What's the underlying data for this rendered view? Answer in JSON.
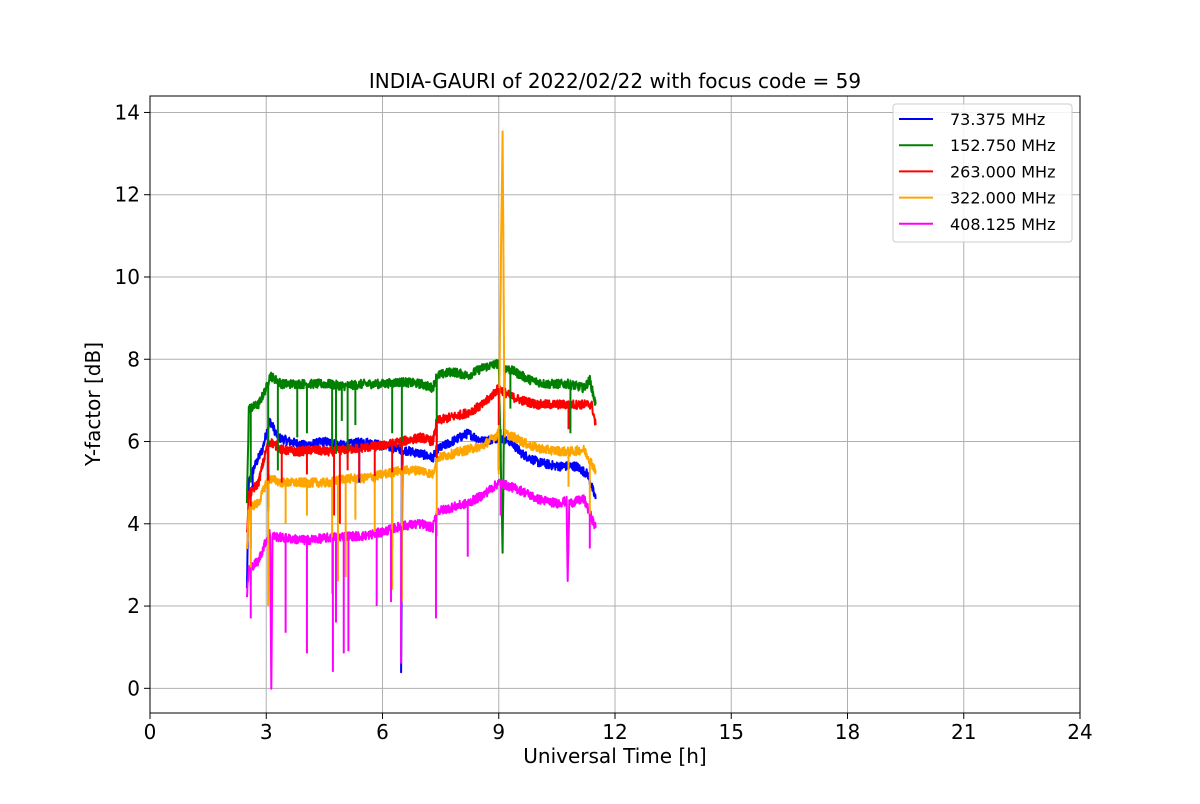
{
  "chart_data": {
    "type": "line",
    "title": "INDIA-GAURI of 2022/02/22 with focus code = 59",
    "xlabel": "Universal Time [h]",
    "ylabel": "Y-factor [dB]",
    "xlim": [
      0,
      24
    ],
    "ylim": [
      -0.6,
      14.4
    ],
    "xticks": [
      0,
      3,
      6,
      9,
      12,
      15,
      18,
      21,
      24
    ],
    "yticks": [
      0,
      2,
      4,
      6,
      8,
      10,
      12,
      14
    ],
    "grid": true,
    "legend_position": "top-right",
    "series": [
      {
        "name": " 73.375 MHz",
        "color": "#0000ff",
        "points": [
          [
            2.5,
            2.4
          ],
          [
            2.55,
            5.0
          ],
          [
            2.7,
            5.4
          ],
          [
            2.9,
            5.8
          ],
          [
            3.0,
            6.2
          ],
          [
            3.1,
            6.5
          ],
          [
            3.3,
            6.1
          ],
          [
            3.6,
            6.0
          ],
          [
            4.0,
            5.9
          ],
          [
            4.5,
            6.0
          ],
          [
            5.0,
            5.9
          ],
          [
            5.5,
            6.0
          ],
          [
            6.0,
            5.9
          ],
          [
            6.5,
            5.8
          ],
          [
            6.48,
            0.4
          ],
          [
            6.52,
            5.8
          ],
          [
            7.0,
            5.7
          ],
          [
            7.3,
            5.6
          ],
          [
            7.4,
            5.8
          ],
          [
            7.8,
            6.0
          ],
          [
            8.2,
            6.2
          ],
          [
            8.6,
            6.0
          ],
          [
            9.0,
            6.1
          ],
          [
            9.3,
            6.0
          ],
          [
            9.6,
            5.7
          ],
          [
            10.0,
            5.5
          ],
          [
            10.5,
            5.4
          ],
          [
            11.0,
            5.4
          ],
          [
            11.3,
            5.2
          ],
          [
            11.5,
            4.6
          ]
        ]
      },
      {
        "name": "152.750 MHz",
        "color": "#008000",
        "points": [
          [
            2.5,
            4.5
          ],
          [
            2.55,
            6.8
          ],
          [
            2.8,
            6.9
          ],
          [
            3.0,
            7.3
          ],
          [
            3.1,
            7.6
          ],
          [
            3.4,
            7.4
          ],
          [
            3.8,
            7.4
          ],
          [
            4.2,
            7.4
          ],
          [
            4.6,
            7.4
          ],
          [
            5.0,
            7.35
          ],
          [
            5.5,
            7.4
          ],
          [
            6.0,
            7.4
          ],
          [
            6.5,
            7.45
          ],
          [
            7.0,
            7.4
          ],
          [
            7.3,
            7.3
          ],
          [
            7.4,
            7.6
          ],
          [
            7.8,
            7.7
          ],
          [
            8.2,
            7.6
          ],
          [
            8.6,
            7.8
          ],
          [
            9.0,
            7.9
          ],
          [
            9.1,
            3.3
          ],
          [
            9.15,
            7.8
          ],
          [
            9.4,
            7.7
          ],
          [
            9.8,
            7.5
          ],
          [
            10.2,
            7.4
          ],
          [
            10.8,
            7.4
          ],
          [
            11.2,
            7.3
          ],
          [
            11.35,
            7.5
          ],
          [
            11.5,
            6.9
          ]
        ]
      },
      {
        "name": "263.000 MHz",
        "color": "#ff0000",
        "points": [
          [
            2.5,
            3.7
          ],
          [
            2.55,
            4.7
          ],
          [
            2.8,
            5.0
          ],
          [
            3.0,
            5.8
          ],
          [
            3.1,
            6.0
          ],
          [
            3.4,
            5.8
          ],
          [
            3.8,
            5.75
          ],
          [
            4.2,
            5.8
          ],
          [
            4.6,
            5.75
          ],
          [
            5.0,
            5.8
          ],
          [
            5.5,
            5.85
          ],
          [
            6.0,
            5.9
          ],
          [
            6.5,
            6.0
          ],
          [
            7.0,
            6.1
          ],
          [
            7.3,
            6.0
          ],
          [
            7.4,
            6.5
          ],
          [
            7.8,
            6.6
          ],
          [
            8.2,
            6.7
          ],
          [
            8.6,
            6.9
          ],
          [
            9.0,
            7.3
          ],
          [
            9.3,
            7.1
          ],
          [
            9.6,
            7.0
          ],
          [
            10.0,
            6.9
          ],
          [
            10.5,
            6.9
          ],
          [
            11.0,
            6.9
          ],
          [
            11.4,
            6.9
          ],
          [
            11.5,
            6.4
          ]
        ]
      },
      {
        "name": "322.000 MHz",
        "color": "#ffa500",
        "points": [
          [
            2.5,
            3.3
          ],
          [
            2.55,
            4.4
          ],
          [
            2.8,
            4.5
          ],
          [
            3.0,
            5.0
          ],
          [
            3.1,
            5.1
          ],
          [
            3.4,
            5.0
          ],
          [
            3.8,
            5.0
          ],
          [
            4.2,
            5.0
          ],
          [
            4.6,
            5.0
          ],
          [
            5.0,
            5.1
          ],
          [
            5.5,
            5.1
          ],
          [
            6.0,
            5.2
          ],
          [
            6.5,
            5.3
          ],
          [
            7.0,
            5.3
          ],
          [
            7.3,
            5.2
          ],
          [
            7.4,
            5.6
          ],
          [
            7.8,
            5.7
          ],
          [
            8.2,
            5.8
          ],
          [
            8.6,
            5.9
          ],
          [
            9.0,
            6.2
          ],
          [
            9.1,
            13.6
          ],
          [
            9.15,
            6.2
          ],
          [
            9.4,
            6.1
          ],
          [
            9.8,
            5.9
          ],
          [
            10.2,
            5.8
          ],
          [
            10.8,
            5.75
          ],
          [
            11.2,
            5.8
          ],
          [
            11.5,
            5.3
          ]
        ]
      },
      {
        "name": "408.125 MHz",
        "color": "#ff00ff",
        "points": [
          [
            2.5,
            2.2
          ],
          [
            2.55,
            2.9
          ],
          [
            2.8,
            3.1
          ],
          [
            3.0,
            3.6
          ],
          [
            3.1,
            3.8
          ],
          [
            3.13,
            0.0
          ],
          [
            3.16,
            3.7
          ],
          [
            3.5,
            3.65
          ],
          [
            4.0,
            3.6
          ],
          [
            4.5,
            3.65
          ],
          [
            5.0,
            3.7
          ],
          [
            5.5,
            3.7
          ],
          [
            6.0,
            3.8
          ],
          [
            6.5,
            3.95
          ],
          [
            7.0,
            4.0
          ],
          [
            7.3,
            3.9
          ],
          [
            7.4,
            4.3
          ],
          [
            7.8,
            4.4
          ],
          [
            8.2,
            4.5
          ],
          [
            8.6,
            4.7
          ],
          [
            9.0,
            5.0
          ],
          [
            9.3,
            4.9
          ],
          [
            9.6,
            4.8
          ],
          [
            10.0,
            4.6
          ],
          [
            10.5,
            4.5
          ],
          [
            10.75,
            4.55
          ],
          [
            10.78,
            2.6
          ],
          [
            10.82,
            4.5
          ],
          [
            11.2,
            4.6
          ],
          [
            11.5,
            3.9
          ]
        ]
      }
    ],
    "spikes": [
      {
        "series": 0,
        "x": [
          2.65,
          3.05,
          5.4,
          9.0
        ],
        "to": [
          4.9,
          5.0,
          5.0,
          5.3
        ]
      },
      {
        "series": 1,
        "x": [
          2.6,
          3.05,
          3.3,
          3.8,
          4.05,
          4.7,
          4.8,
          4.95,
          5.1,
          5.3,
          6.25,
          6.5,
          7.4,
          9.05,
          9.3,
          10.85
        ],
        "to": [
          5.0,
          4.4,
          5.3,
          6.1,
          6.2,
          5.8,
          5.7,
          6.5,
          5.6,
          6.4,
          6.2,
          5.8,
          6.0,
          6.3,
          6.8,
          6.2
        ]
      },
      {
        "series": 2,
        "x": [
          2.6,
          3.05,
          3.4,
          4.05,
          4.75,
          4.9,
          5.1,
          5.4,
          5.8,
          6.25,
          6.5,
          7.4,
          9.0,
          10.8
        ],
        "to": [
          3.4,
          4.3,
          5.0,
          5.2,
          4.2,
          4.0,
          5.3,
          5.1,
          5.0,
          3.4,
          4.8,
          5.5,
          6.4,
          6.3
        ]
      },
      {
        "series": 3,
        "x": [
          2.6,
          3.05,
          3.5,
          4.05,
          4.7,
          4.85,
          5.05,
          5.3,
          5.8,
          6.25,
          6.5,
          7.4,
          9.0,
          10.8,
          11.35
        ],
        "to": [
          2.5,
          2.0,
          4.0,
          4.2,
          2.3,
          2.6,
          2.7,
          4.1,
          3.8,
          2.4,
          2.1,
          3.7,
          5.2,
          4.9,
          4.2
        ]
      },
      {
        "series": 4,
        "x": [
          2.6,
          3.5,
          4.05,
          4.72,
          4.8,
          5.0,
          5.12,
          5.85,
          6.22,
          6.48,
          7.38,
          8.2,
          9.05,
          11.35
        ],
        "to": [
          1.7,
          1.35,
          0.85,
          0.4,
          1.6,
          0.85,
          0.9,
          2.0,
          2.1,
          0.6,
          1.7,
          3.2,
          4.2,
          3.4
        ]
      }
    ]
  }
}
